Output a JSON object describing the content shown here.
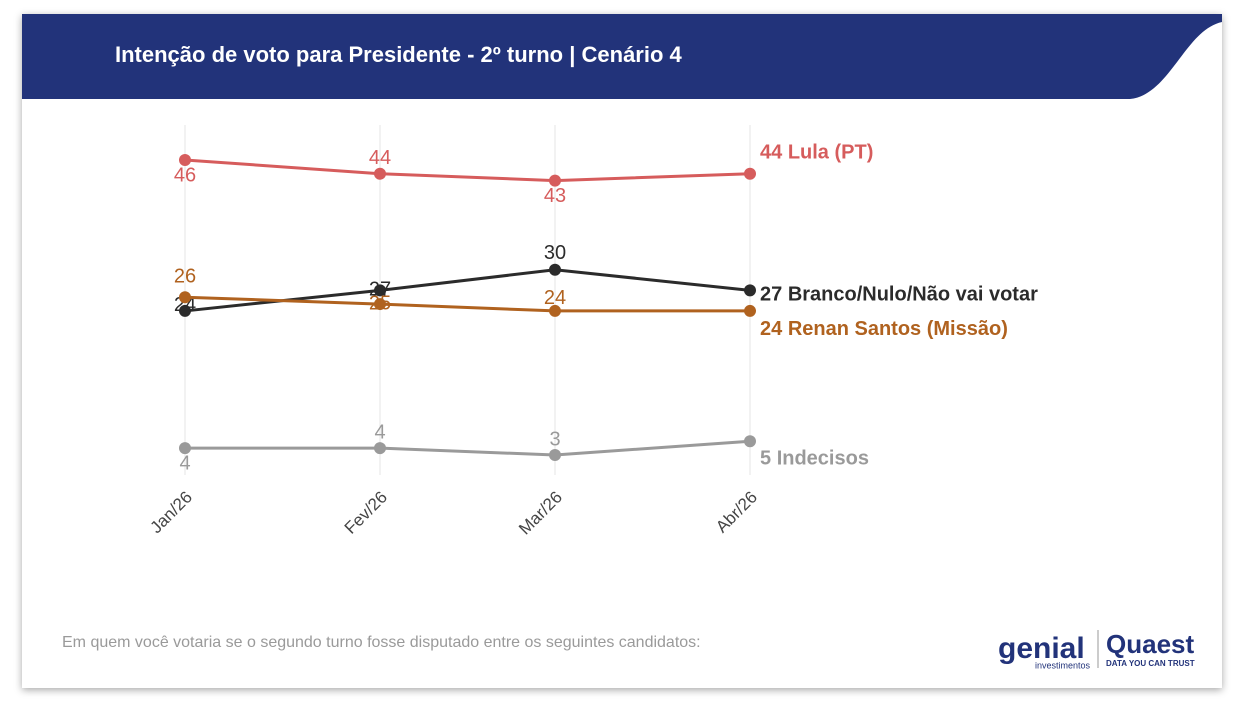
{
  "chart_data": {
    "type": "line",
    "title": "Intenção de voto para Presidente - 2º turno | Cenário 4",
    "categories": [
      "Jan/26",
      "Fev/26",
      "Mar/26",
      "Abr/26"
    ],
    "series": [
      {
        "name": "Lula (PT)",
        "color": "#d65c5c",
        "values": [
          46,
          44,
          43,
          44
        ]
      },
      {
        "name": "Branco/Nulo/Não vai votar",
        "color": "#2b2b2b",
        "values": [
          24,
          27,
          30,
          27
        ]
      },
      {
        "name": "Renan Santos (Missão)",
        "color": "#b0621f",
        "values": [
          26,
          25,
          24,
          24
        ]
      },
      {
        "name": "Indecisos",
        "color": "#9a9a9a",
        "values": [
          4,
          4,
          3,
          5
        ]
      }
    ]
  },
  "footnote": "Em quem você votaria se o segundo turno fosse disputado entre os seguintes candidatos:",
  "brand": {
    "genial": "genial",
    "genial_sub": "investimentos",
    "quaest": "Quaest",
    "quaest_tag": "DATA YOU CAN TRUST"
  }
}
